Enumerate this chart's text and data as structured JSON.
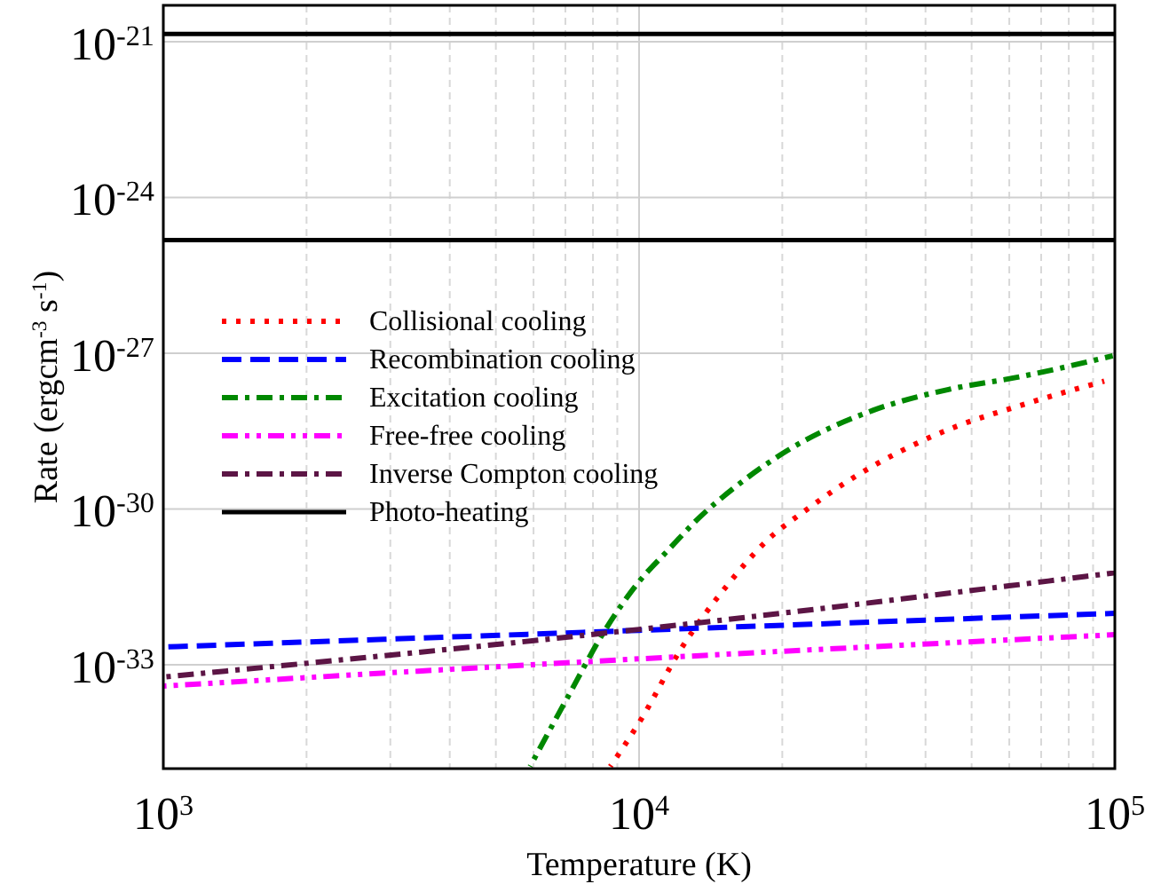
{
  "chart_data": {
    "type": "line",
    "xlabel": "Temperature (K)",
    "ylabel": "Rate (ergcm$^{-3}$ s$^{-1}$)",
    "log": "xy",
    "grid": true,
    "legend": "center left",
    "xlim": [
      1000,
      100000
    ],
    "ylim": [
      1e-35,
      5e-21
    ],
    "xticks": [
      {
        "value": 1000,
        "label": "10$^{3}$"
      },
      {
        "value": 2000,
        "label": null
      },
      {
        "value": 3000,
        "label": null
      },
      {
        "value": 4000,
        "label": null
      },
      {
        "value": 5000,
        "label": null
      },
      {
        "value": 6000,
        "label": null
      },
      {
        "value": 7000,
        "label": null
      },
      {
        "value": 8000,
        "label": null
      },
      {
        "value": 9000,
        "label": null
      },
      {
        "value": 10000,
        "label": "10$^{4}$"
      },
      {
        "value": 20000,
        "label": null
      },
      {
        "value": 30000,
        "label": null
      },
      {
        "value": 40000,
        "label": null
      },
      {
        "value": 50000,
        "label": null
      },
      {
        "value": 60000,
        "label": null
      },
      {
        "value": 70000,
        "label": null
      },
      {
        "value": 80000,
        "label": null
      },
      {
        "value": 90000,
        "label": null
      },
      {
        "value": 100000,
        "label": "10$^{5}$"
      }
    ],
    "yticks": [
      {
        "value": 1e-21,
        "label": "10$^{-21}$"
      },
      {
        "value": 1e-24,
        "label": "10$^{-24}$"
      },
      {
        "value": 1e-27,
        "label": "10$^{-27}$"
      },
      {
        "value": 1e-30,
        "label": "10$^{-30}$"
      },
      {
        "value": 1e-33,
        "label": "10$^{-33}$"
      }
    ],
    "series": [
      {
        "name": "Collisional cooling",
        "color": "#ff0000",
        "line_style": "dotted",
        "x": [
          8700,
          10100,
          12200,
          15400,
          18600,
          22600,
          28200,
          35500,
          46800,
          62000,
          95000
        ],
        "values": [
          1.1e-35,
          8.9e-35,
          1.9e-33,
          3.6e-32,
          2.5e-31,
          1e-30,
          4e-30,
          1.3e-29,
          4e-29,
          9.3e-29,
          2.9e-28
        ]
      },
      {
        "name": "Recombination cooling",
        "color": "#0000ff",
        "line_style": "dashed",
        "x": [
          1000,
          10000,
          100000
        ],
        "values": [
          2.2e-33,
          4.6e-33,
          9.8e-33
        ]
      },
      {
        "name": "Excitation cooling",
        "color": "#008800",
        "line_style": "dashdot",
        "x": [
          5900,
          7100,
          8500,
          10000,
          11500,
          13400,
          15800,
          20400,
          31000,
          44700,
          63000,
          99000
        ],
        "values": [
          1.1e-35,
          2.5e-34,
          4.8e-33,
          4e-32,
          1.6e-31,
          6.9e-31,
          2.5e-30,
          1.3e-29,
          7.9e-29,
          2e-28,
          3.5e-28,
          8.9e-28
        ]
      },
      {
        "name": "Free-free cooling",
        "color": "#ff00ff",
        "line_style": "dashdotdot",
        "x": [
          1000,
          10000,
          100000
        ],
        "values": [
          3.9e-34,
          1.3e-33,
          3.8e-33
        ]
      },
      {
        "name": "Inverse Compton cooling",
        "color": "#5c1545",
        "line_style": "dashdot",
        "x": [
          1000,
          10000,
          100000
        ],
        "values": [
          5.8e-34,
          4.8e-33,
          5.9e-32
        ]
      },
      {
        "name": "Photo-heating",
        "color": "#000000",
        "line_style": "solid",
        "x": [
          1000,
          100000
        ],
        "values": [
          1.4e-21,
          1.4e-21
        ]
      },
      {
        "color": "#000000",
        "line_style": "solid",
        "x": [
          1000,
          100000
        ],
        "values": [
          1.5e-25,
          1.5e-25
        ]
      }
    ]
  }
}
